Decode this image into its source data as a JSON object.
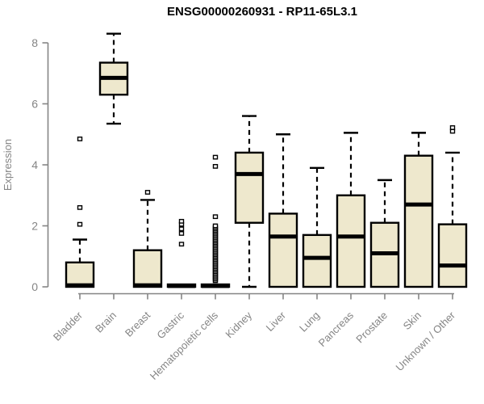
{
  "figure": {
    "title": "ENSG00000260931 - RP11-65L3.1"
  },
  "chart_data": {
    "type": "boxplot",
    "title": "ENSG00000260931 - RP11-65L3.1",
    "xlabel": "",
    "ylabel": "Expression",
    "ylim": [
      0,
      8.4
    ],
    "yticks": [
      0,
      2,
      4,
      6,
      8
    ],
    "grid": false,
    "legend": null,
    "categories": [
      "Bladder",
      "Brain",
      "Breast",
      "Gastric",
      "Hematopoietic cells",
      "Kidney",
      "Liver",
      "Lung",
      "Pancreas",
      "Prostate",
      "Skin",
      "Unknown / Other"
    ],
    "series": [
      {
        "name": "Bladder",
        "whisker_low": 0,
        "q1": 0,
        "median": 0.05,
        "q3": 0.8,
        "whisker_high": 1.55,
        "outliers": [
          2.05,
          2.6,
          4.85
        ]
      },
      {
        "name": "Brain",
        "whisker_low": 5.35,
        "q1": 6.3,
        "median": 6.85,
        "q3": 7.35,
        "whisker_high": 8.3,
        "outliers": []
      },
      {
        "name": "Breast",
        "whisker_low": 0,
        "q1": 0,
        "median": 0.05,
        "q3": 1.2,
        "whisker_high": 2.85,
        "outliers": [
          3.1
        ]
      },
      {
        "name": "Gastric",
        "whisker_low": 0,
        "q1": 0,
        "median": 0.03,
        "q3": 0.08,
        "whisker_high": 0.08,
        "outliers": [
          1.4,
          1.75,
          1.9,
          2.05,
          2.15
        ]
      },
      {
        "name": "Hematopoietic cells",
        "whisker_low": 0,
        "q1": 0,
        "median": 0.03,
        "q3": 0.08,
        "whisker_high": 0.08,
        "outliers": [
          0.2,
          0.25,
          0.3,
          0.35,
          0.4,
          0.45,
          0.5,
          0.55,
          0.6,
          0.65,
          0.7,
          0.75,
          0.8,
          0.85,
          0.9,
          0.95,
          1.0,
          1.05,
          1.1,
          1.15,
          1.2,
          1.25,
          1.3,
          1.35,
          1.4,
          1.45,
          1.5,
          1.55,
          1.6,
          1.65,
          1.7,
          1.75,
          1.8,
          1.85,
          1.9,
          1.95,
          2.0,
          2.3,
          3.95,
          4.25
        ]
      },
      {
        "name": "Kidney",
        "whisker_low": 0,
        "q1": 2.1,
        "median": 3.7,
        "q3": 4.4,
        "whisker_high": 5.6,
        "outliers": []
      },
      {
        "name": "Liver",
        "whisker_low": 0,
        "q1": 0,
        "median": 1.65,
        "q3": 2.4,
        "whisker_high": 5.0,
        "outliers": []
      },
      {
        "name": "Lung",
        "whisker_low": 0,
        "q1": 0,
        "median": 0.95,
        "q3": 1.7,
        "whisker_high": 3.9,
        "outliers": []
      },
      {
        "name": "Pancreas",
        "whisker_low": 0,
        "q1": 0,
        "median": 1.65,
        "q3": 3.0,
        "whisker_high": 5.05,
        "outliers": []
      },
      {
        "name": "Prostate",
        "whisker_low": 0,
        "q1": 0,
        "median": 1.1,
        "q3": 2.1,
        "whisker_high": 3.5,
        "outliers": []
      },
      {
        "name": "Skin",
        "whisker_low": 0,
        "q1": 0,
        "median": 2.7,
        "q3": 4.3,
        "whisker_high": 5.05,
        "outliers": []
      },
      {
        "name": "Unknown / Other",
        "whisker_low": 0,
        "q1": 0,
        "median": 0.7,
        "q3": 2.05,
        "whisker_high": 4.4,
        "outliers": [
          5.1,
          5.22
        ]
      }
    ],
    "colors": {
      "box_fill": "#EEE8CD",
      "box_stroke": "#000000",
      "median": "#000000",
      "whisker": "#000000",
      "outlier_stroke": "#000000",
      "outlier_fill": "#FFFFFF",
      "axis": "#858585",
      "tick_label": "#858585",
      "title": "#000000",
      "background": "#FFFFFF"
    }
  }
}
